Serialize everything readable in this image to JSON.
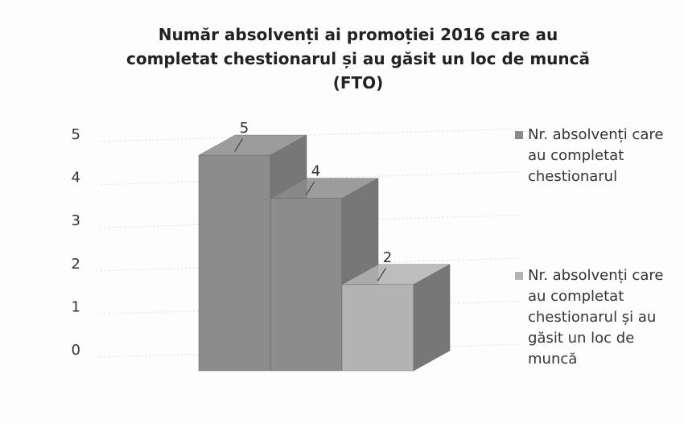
{
  "chart_data": {
    "type": "bar3d",
    "title": "Număr absolvenți ai promoției 2016 care au completat chestionarul și au găsit un loc de muncă (FTO)",
    "categories": [
      null,
      null,
      null
    ],
    "series": [
      {
        "name": "Nr. absolvenți care au completat chestionarul",
        "color": "#8c8c8c",
        "values": [
          5,
          4,
          null
        ]
      },
      {
        "name": "Nr. absolvenți care au completat chestionarul și au găsit un loc de muncă",
        "color": "#b3b3b3",
        "values": [
          null,
          null,
          2
        ]
      }
    ],
    "ylim": [
      0,
      5
    ],
    "yticks": [
      0,
      1,
      2,
      3,
      4,
      5
    ],
    "grid": true,
    "legend": "right"
  }
}
